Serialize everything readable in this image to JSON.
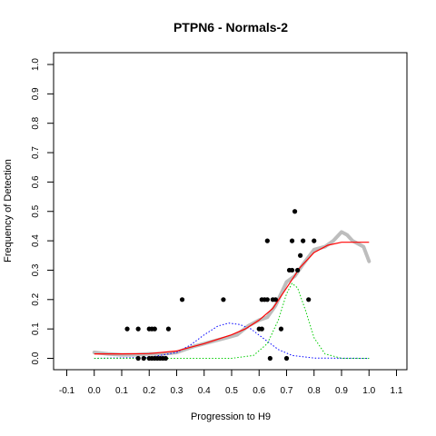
{
  "chart_data": {
    "type": "scatter",
    "title": "PTPN6 - Normals-2",
    "xlabel": "Progression to H9",
    "ylabel": "Frequency of Detection",
    "xlim": [
      -0.1,
      1.1
    ],
    "ylim": [
      0.0,
      1.0
    ],
    "x_ticks": [
      "-0.1",
      "0.0",
      "0.1",
      "0.2",
      "0.3",
      "0.4",
      "0.5",
      "0.6",
      "0.7",
      "0.8",
      "0.9",
      "1.0",
      "1.1"
    ],
    "y_ticks": [
      "0.0",
      "0.1",
      "0.2",
      "0.3",
      "0.4",
      "0.5",
      "0.6",
      "0.7",
      "0.8",
      "0.9",
      "1.0"
    ],
    "grid": false,
    "series": [
      {
        "kind": "points",
        "color": "#000000",
        "values": [
          [
            0.12,
            0.1
          ],
          [
            0.16,
            0.1
          ],
          [
            0.2,
            0.1
          ],
          [
            0.21,
            0.1
          ],
          [
            0.22,
            0.1
          ],
          [
            0.27,
            0.1
          ],
          [
            0.16,
            0.0
          ],
          [
            0.18,
            0.0
          ],
          [
            0.2,
            0.0
          ],
          [
            0.21,
            0.0
          ],
          [
            0.22,
            0.0
          ],
          [
            0.23,
            0.0
          ],
          [
            0.24,
            0.0
          ],
          [
            0.25,
            0.0
          ],
          [
            0.26,
            0.0
          ],
          [
            0.32,
            0.2
          ],
          [
            0.47,
            0.2
          ],
          [
            0.6,
            0.1
          ],
          [
            0.61,
            0.1
          ],
          [
            0.61,
            0.2
          ],
          [
            0.62,
            0.2
          ],
          [
            0.63,
            0.4
          ],
          [
            0.63,
            0.2
          ],
          [
            0.64,
            0.0
          ],
          [
            0.65,
            0.2
          ],
          [
            0.66,
            0.2
          ],
          [
            0.68,
            0.1
          ],
          [
            0.7,
            0.0
          ],
          [
            0.71,
            0.3
          ],
          [
            0.72,
            0.4
          ],
          [
            0.72,
            0.3
          ],
          [
            0.73,
            0.5
          ],
          [
            0.74,
            0.3
          ],
          [
            0.75,
            0.35
          ],
          [
            0.76,
            0.4
          ],
          [
            0.78,
            0.2
          ],
          [
            0.8,
            0.4
          ]
        ]
      },
      {
        "kind": "smoothed-trace",
        "color": "#bdbdbd",
        "values": [
          [
            0.0,
            0.02
          ],
          [
            0.05,
            0.015
          ],
          [
            0.1,
            0.012
          ],
          [
            0.15,
            0.012
          ],
          [
            0.2,
            0.015
          ],
          [
            0.25,
            0.015
          ],
          [
            0.3,
            0.02
          ],
          [
            0.33,
            0.03
          ],
          [
            0.36,
            0.04
          ],
          [
            0.4,
            0.05
          ],
          [
            0.44,
            0.06
          ],
          [
            0.48,
            0.07
          ],
          [
            0.52,
            0.08
          ],
          [
            0.56,
            0.11
          ],
          [
            0.6,
            0.13
          ],
          [
            0.63,
            0.14
          ],
          [
            0.66,
            0.18
          ],
          [
            0.7,
            0.26
          ],
          [
            0.73,
            0.28
          ],
          [
            0.76,
            0.32
          ],
          [
            0.8,
            0.37
          ],
          [
            0.84,
            0.38
          ],
          [
            0.87,
            0.4
          ],
          [
            0.9,
            0.43
          ],
          [
            0.92,
            0.42
          ],
          [
            0.94,
            0.4
          ],
          [
            0.96,
            0.39
          ],
          [
            0.98,
            0.38
          ],
          [
            1.0,
            0.33
          ]
        ]
      },
      {
        "kind": "fit",
        "color": "#ff0000",
        "values": [
          [
            0.0,
            0.015
          ],
          [
            0.1,
            0.015
          ],
          [
            0.2,
            0.016
          ],
          [
            0.3,
            0.025
          ],
          [
            0.4,
            0.05
          ],
          [
            0.5,
            0.08
          ],
          [
            0.55,
            0.1
          ],
          [
            0.6,
            0.13
          ],
          [
            0.65,
            0.17
          ],
          [
            0.7,
            0.24
          ],
          [
            0.75,
            0.31
          ],
          [
            0.8,
            0.36
          ],
          [
            0.85,
            0.385
          ],
          [
            0.9,
            0.395
          ],
          [
            0.95,
            0.395
          ],
          [
            1.0,
            0.395
          ]
        ]
      },
      {
        "kind": "component",
        "color": "#0000ff",
        "values": [
          [
            0.0,
            0.0
          ],
          [
            0.2,
            0.003
          ],
          [
            0.3,
            0.02
          ],
          [
            0.35,
            0.045
          ],
          [
            0.4,
            0.08
          ],
          [
            0.45,
            0.11
          ],
          [
            0.49,
            0.12
          ],
          [
            0.53,
            0.115
          ],
          [
            0.57,
            0.1
          ],
          [
            0.62,
            0.065
          ],
          [
            0.67,
            0.03
          ],
          [
            0.72,
            0.01
          ],
          [
            0.8,
            0.001
          ],
          [
            1.0,
            0.0
          ]
        ]
      },
      {
        "kind": "component",
        "color": "#00cc00",
        "values": [
          [
            0.0,
            0.0
          ],
          [
            0.5,
            0.0
          ],
          [
            0.58,
            0.01
          ],
          [
            0.63,
            0.05
          ],
          [
            0.67,
            0.13
          ],
          [
            0.7,
            0.22
          ],
          [
            0.72,
            0.255
          ],
          [
            0.74,
            0.24
          ],
          [
            0.77,
            0.16
          ],
          [
            0.8,
            0.07
          ],
          [
            0.84,
            0.015
          ],
          [
            0.9,
            0.0
          ],
          [
            1.0,
            0.0
          ]
        ]
      }
    ]
  }
}
